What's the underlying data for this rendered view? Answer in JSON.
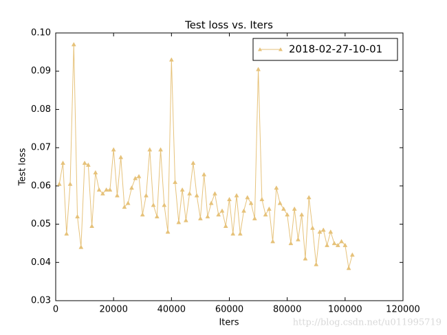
{
  "chart_data": {
    "type": "line",
    "title": "Test loss  vs. Iters",
    "xlabel": "Iters",
    "ylabel": "Test loss",
    "x": [
      1250,
      2500,
      3750,
      5000,
      6250,
      7500,
      8750,
      10000,
      11250,
      12500,
      13750,
      15000,
      16250,
      17500,
      18750,
      20000,
      21250,
      22500,
      23750,
      25000,
      26250,
      27500,
      28750,
      30000,
      31250,
      32500,
      33750,
      35000,
      36250,
      37500,
      38750,
      40000,
      41250,
      42500,
      43750,
      45000,
      46250,
      47500,
      48750,
      50000,
      51250,
      52500,
      53750,
      55000,
      56250,
      57500,
      58750,
      60000,
      61250,
      62500,
      63750,
      65000,
      66250,
      67500,
      68750,
      70000,
      71250,
      72500,
      73750,
      75000,
      76250,
      77500,
      78750,
      80000,
      81250,
      82500,
      83750,
      85000,
      86250,
      87500,
      88750,
      90000,
      91250,
      92500,
      93750,
      95000,
      96250,
      97500,
      98750,
      100000,
      101250,
      102500
    ],
    "series": [
      {
        "name": "2018-02-27-10-01",
        "color": "#e6c27a",
        "marker": "triangle",
        "values": [
          0.0605,
          0.066,
          0.0475,
          0.0605,
          0.097,
          0.052,
          0.044,
          0.066,
          0.0655,
          0.0495,
          0.0635,
          0.059,
          0.058,
          0.059,
          0.059,
          0.0695,
          0.0575,
          0.0675,
          0.0545,
          0.0555,
          0.0595,
          0.062,
          0.0625,
          0.0525,
          0.0575,
          0.0695,
          0.055,
          0.052,
          0.0695,
          0.055,
          0.048,
          0.093,
          0.061,
          0.0505,
          0.059,
          0.051,
          0.058,
          0.066,
          0.0575,
          0.0515,
          0.063,
          0.052,
          0.0555,
          0.058,
          0.0525,
          0.0535,
          0.0495,
          0.0565,
          0.0475,
          0.0575,
          0.0475,
          0.0535,
          0.057,
          0.0555,
          0.0515,
          0.0905,
          0.0565,
          0.0525,
          0.054,
          0.0455,
          0.0595,
          0.0555,
          0.054,
          0.0525,
          0.045,
          0.054,
          0.046,
          0.0525,
          0.041,
          0.057,
          0.049,
          0.0395,
          0.048,
          0.0485,
          0.0445,
          0.048,
          0.045,
          0.0445,
          0.0455,
          0.0445,
          0.0385,
          0.042
        ]
      }
    ],
    "xlim": [
      0,
      120000
    ],
    "xticks": [
      0,
      20000,
      40000,
      60000,
      80000,
      100000,
      120000
    ],
    "ylim": [
      0.03,
      0.1
    ],
    "yticks": [
      0.03,
      0.04,
      0.05,
      0.06,
      0.07,
      0.08,
      0.09,
      {
        "value": 0.1,
        "label": "0.10"
      }
    ],
    "legend": "upper right",
    "grid": false
  },
  "watermark": "http://blog.csdn.net/u011995719"
}
